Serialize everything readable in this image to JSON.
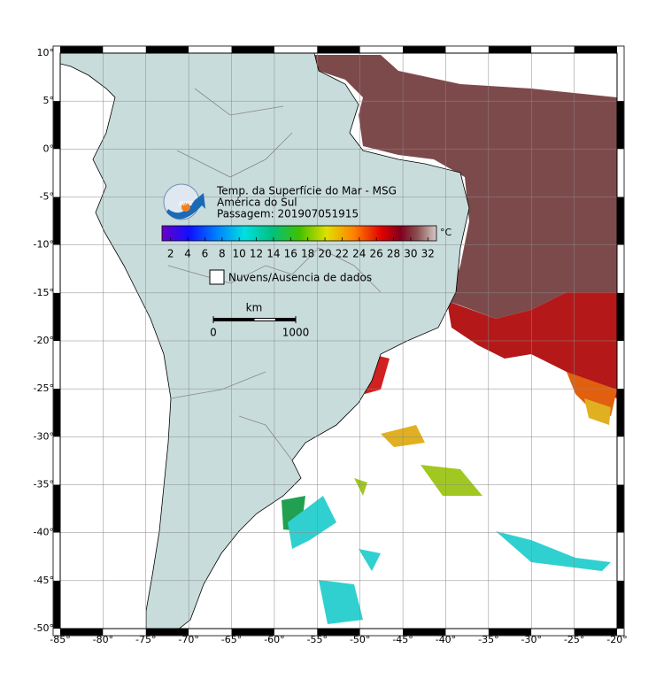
{
  "map": {
    "title": "Temp. da Superfície do Mar - MSG",
    "subtitle": "América do Sul",
    "pass": "Passagem: 201907051915",
    "logo": "INPE",
    "lonlim": [
      -85,
      -20
    ],
    "latlim": [
      -50,
      10
    ],
    "lonticks": [
      {
        "value": -85,
        "label": "-85°"
      },
      {
        "value": -80,
        "label": "-80°"
      },
      {
        "value": -75,
        "label": "-75°"
      },
      {
        "value": -70,
        "label": "-70°"
      },
      {
        "value": -65,
        "label": "-65°"
      },
      {
        "value": -60,
        "label": "-60°"
      },
      {
        "value": -55,
        "label": "-55°"
      },
      {
        "value": -50,
        "label": "-50°"
      },
      {
        "value": -45,
        "label": "-45°"
      },
      {
        "value": -40,
        "label": "-40°"
      },
      {
        "value": -35,
        "label": "-35°"
      },
      {
        "value": -30,
        "label": "-30°"
      },
      {
        "value": -25,
        "label": "-25°"
      },
      {
        "value": -20,
        "label": "-20°"
      }
    ],
    "latticks": [
      {
        "value": 10,
        "label": "10°"
      },
      {
        "value": 5,
        "label": "5°"
      },
      {
        "value": 0,
        "label": "0°"
      },
      {
        "value": -5,
        "label": "-5°"
      },
      {
        "value": -10,
        "label": "-10°"
      },
      {
        "value": -15,
        "label": "-15°"
      },
      {
        "value": -20,
        "label": "-20°"
      },
      {
        "value": -25,
        "label": "-25°"
      },
      {
        "value": -30,
        "label": "-30°"
      },
      {
        "value": -35,
        "label": "-35°"
      },
      {
        "value": -40,
        "label": "-40°"
      },
      {
        "value": -45,
        "label": "-45°"
      },
      {
        "value": -50,
        "label": "-50°"
      }
    ],
    "colorbar": {
      "lim": [
        1,
        33
      ],
      "ticks": [
        2,
        4,
        6,
        8,
        10,
        12,
        14,
        16,
        18,
        20,
        22,
        24,
        26,
        28,
        30,
        32
      ],
      "unit": "°C"
    },
    "legend": "Nuvens/Ausencia de dados",
    "scale_bar": {
      "unit": "km",
      "ticks": [
        0,
        1000
      ]
    }
  }
}
